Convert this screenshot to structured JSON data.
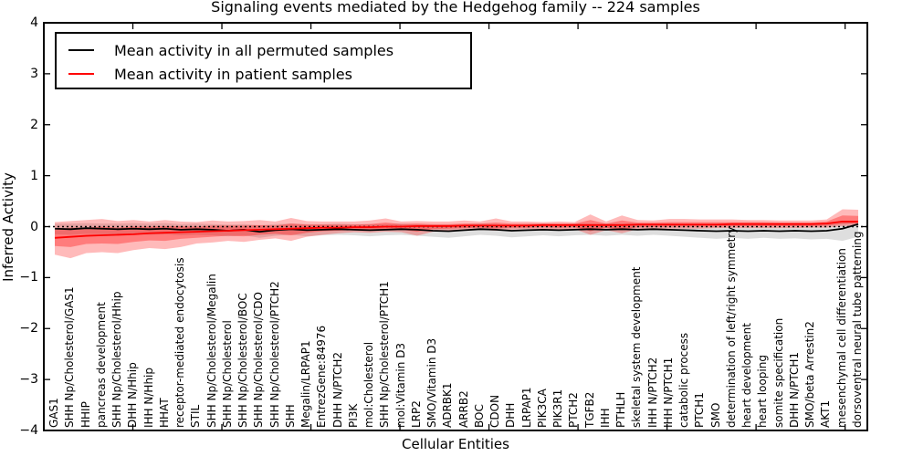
{
  "title": "Signaling events mediated by the Hedgehog family -- 224 samples",
  "axes": {
    "xlabel": "Cellular Entities",
    "ylabel": "Inferred Activity"
  },
  "legend": {
    "items": [
      {
        "label": "Mean activity in all permuted samples",
        "color": "#000000"
      },
      {
        "label": "Mean activity in patient samples",
        "color": "#ff0000"
      }
    ]
  },
  "colors": {
    "patient_line": "#ff0000",
    "permuted_line": "#000000",
    "patient_band_outer": "rgba(255,0,0,0.27)",
    "patient_band_inner": "rgba(255,0,0,0.33)",
    "permuted_band": "rgba(0,0,0,0.13)",
    "frame": "#000000",
    "background": "#ffffff"
  },
  "chart_data": {
    "type": "line",
    "title": "Signaling events mediated by the Hedgehog family -- 224 samples",
    "xlabel": "Cellular Entities",
    "ylabel": "Inferred Activity",
    "ylim": [
      -4,
      4
    ],
    "ytick_values": [
      4,
      3,
      2,
      1,
      0,
      -1,
      -2,
      -3,
      -4
    ],
    "ytick_labels": [
      "4",
      "3",
      "2",
      "1",
      "0",
      "−1",
      "−2",
      "−3",
      "−4"
    ],
    "grid": false,
    "legend_position": "upper left",
    "zero_reference_line": 0,
    "categories": [
      "GAS1",
      "SHH Np/Cholesterol/GAS1",
      "HHIP",
      "pancreas development",
      "SHH Np/Cholesterol/Hhip",
      "DHH N/Hhip",
      "IHH N/Hhip",
      "HHAT",
      "receptor-mediated endocytosis",
      "STIL",
      "SHH Np/Cholesterol/Megalin",
      "SHH Np/Cholesterol",
      "SHH Np/Cholesterol/BOC",
      "SHH Np/Cholesterol/CDO",
      "SHH Np/Cholesterol/PTCH2",
      "SHH",
      "Megalin/LRPAP1",
      "EntrezGene:84976",
      "DHH N/PTCH2",
      "PI3K",
      "mol:Cholesterol",
      "SHH Np/Cholesterol/PTCH1",
      "mol:Vitamin D3",
      "LRP2",
      "SMO/Vitamin D3",
      "ADRBK1",
      "ARRB2",
      "BOC",
      "CDON",
      "DHH",
      "LRPAP1",
      "PIK3CA",
      "PIK3R1",
      "PTCH2",
      "TGFB2",
      "IHH",
      "PTHLH",
      "skeletal system development",
      "IHH N/PTCH2",
      "IHH N/PTCH1",
      "catabolic process",
      "PTCH1",
      "SMO",
      "determination of left/right symmetry",
      "heart development",
      "heart looping",
      "somite specification",
      "DHH N/PTCH1",
      "SMO/beta Arrestin2",
      "AKT1",
      "mesenchymal cell differentiation",
      "dorsoventral neural tube patterning"
    ],
    "series": [
      {
        "name": "Mean activity in all permuted samples",
        "color": "#000000",
        "values": [
          -0.04,
          -0.05,
          -0.03,
          -0.04,
          -0.05,
          -0.04,
          -0.05,
          -0.04,
          -0.06,
          -0.05,
          -0.06,
          -0.08,
          -0.06,
          -0.1,
          -0.07,
          -0.05,
          -0.07,
          -0.06,
          -0.05,
          -0.06,
          -0.07,
          -0.06,
          -0.05,
          -0.06,
          -0.08,
          -0.09,
          -0.07,
          -0.05,
          -0.06,
          -0.08,
          -0.07,
          -0.06,
          -0.07,
          -0.06,
          -0.05,
          -0.06,
          -0.05,
          -0.06,
          -0.05,
          -0.06,
          -0.07,
          -0.08,
          -0.09,
          -0.08,
          -0.09,
          -0.08,
          -0.09,
          -0.08,
          -0.09,
          -0.08,
          -0.04,
          0.05
        ]
      },
      {
        "name": "Mean activity in patient samples",
        "color": "#ff0000",
        "values": [
          -0.22,
          -0.2,
          -0.18,
          -0.17,
          -0.16,
          -0.15,
          -0.13,
          -0.12,
          -0.11,
          -0.1,
          -0.09,
          -0.08,
          -0.07,
          -0.06,
          -0.05,
          -0.04,
          -0.03,
          -0.02,
          -0.02,
          -0.01,
          -0.01,
          0.0,
          0.0,
          0.01,
          0.01,
          0.01,
          0.02,
          0.02,
          0.02,
          0.02,
          0.02,
          0.03,
          0.03,
          0.03,
          0.03,
          0.03,
          0.03,
          0.04,
          0.04,
          0.04,
          0.04,
          0.04,
          0.04,
          0.05,
          0.05,
          0.05,
          0.05,
          0.05,
          0.05,
          0.06,
          0.1,
          0.1
        ]
      }
    ],
    "bands": [
      {
        "name": "permuted-range",
        "color": "rgba(0,0,0,0.13)",
        "low": [
          -0.15,
          -0.16,
          -0.14,
          -0.15,
          -0.16,
          -0.15,
          -0.16,
          -0.15,
          -0.17,
          -0.16,
          -0.17,
          -0.19,
          -0.17,
          -0.22,
          -0.18,
          -0.16,
          -0.19,
          -0.17,
          -0.16,
          -0.17,
          -0.19,
          -0.17,
          -0.16,
          -0.18,
          -0.2,
          -0.22,
          -0.19,
          -0.16,
          -0.18,
          -0.21,
          -0.19,
          -0.17,
          -0.19,
          -0.17,
          -0.16,
          -0.18,
          -0.16,
          -0.18,
          -0.16,
          -0.18,
          -0.2,
          -0.22,
          -0.24,
          -0.22,
          -0.24,
          -0.22,
          -0.24,
          -0.23,
          -0.25,
          -0.24,
          -0.28,
          -0.2
        ],
        "high": [
          0.06,
          0.06,
          0.07,
          0.06,
          0.06,
          0.07,
          0.06,
          0.07,
          0.05,
          0.06,
          0.05,
          0.04,
          0.05,
          0.03,
          0.05,
          0.06,
          0.05,
          0.05,
          0.06,
          0.05,
          0.05,
          0.05,
          0.06,
          0.05,
          0.04,
          0.04,
          0.05,
          0.06,
          0.05,
          0.04,
          0.05,
          0.06,
          0.05,
          0.06,
          0.06,
          0.06,
          0.06,
          0.06,
          0.06,
          0.06,
          0.05,
          0.05,
          0.04,
          0.05,
          0.04,
          0.05,
          0.04,
          0.05,
          0.04,
          0.05,
          0.08,
          0.12
        ]
      },
      {
        "name": "patient-range-outer",
        "color": "rgba(255,0,0,0.27)",
        "low": [
          -0.55,
          -0.62,
          -0.52,
          -0.5,
          -0.52,
          -0.46,
          -0.42,
          -0.44,
          -0.4,
          -0.33,
          -0.31,
          -0.28,
          -0.3,
          -0.26,
          -0.23,
          -0.28,
          -0.2,
          -0.16,
          -0.13,
          -0.11,
          -0.12,
          -0.1,
          -0.11,
          -0.18,
          -0.1,
          -0.08,
          -0.07,
          -0.06,
          -0.08,
          -0.06,
          -0.05,
          -0.05,
          -0.06,
          -0.05,
          -0.16,
          -0.07,
          -0.13,
          -0.05,
          -0.05,
          -0.04,
          -0.04,
          -0.04,
          -0.03,
          -0.03,
          -0.03,
          -0.03,
          -0.03,
          -0.03,
          -0.02,
          -0.02,
          0.01,
          0.02
        ],
        "high": [
          0.09,
          0.11,
          0.13,
          0.15,
          0.11,
          0.13,
          0.1,
          0.13,
          0.1,
          0.09,
          0.12,
          0.1,
          0.11,
          0.13,
          0.1,
          0.17,
          0.11,
          0.1,
          0.1,
          0.1,
          0.12,
          0.16,
          0.1,
          0.11,
          0.1,
          0.1,
          0.12,
          0.1,
          0.16,
          0.1,
          0.1,
          0.09,
          0.1,
          0.09,
          0.24,
          0.1,
          0.22,
          0.13,
          0.12,
          0.15,
          0.15,
          0.14,
          0.14,
          0.14,
          0.13,
          0.13,
          0.12,
          0.12,
          0.12,
          0.14,
          0.34,
          0.33
        ]
      },
      {
        "name": "patient-range-inner",
        "color": "rgba(255,0,0,0.33)",
        "low": [
          -0.38,
          -0.4,
          -0.34,
          -0.33,
          -0.34,
          -0.3,
          -0.27,
          -0.28,
          -0.24,
          -0.22,
          -0.2,
          -0.18,
          -0.19,
          -0.16,
          -0.14,
          -0.17,
          -0.12,
          -0.09,
          -0.08,
          -0.06,
          -0.07,
          -0.05,
          -0.06,
          -0.1,
          -0.05,
          -0.04,
          -0.03,
          -0.02,
          -0.04,
          -0.02,
          -0.02,
          -0.01,
          -0.02,
          -0.01,
          -0.09,
          -0.02,
          -0.07,
          -0.01,
          -0.01,
          0.0,
          0.0,
          0.0,
          0.0,
          0.01,
          0.01,
          0.01,
          0.01,
          0.01,
          0.01,
          0.02,
          0.05,
          0.06
        ],
        "high": [
          -0.06,
          -0.02,
          -0.02,
          0.0,
          -0.02,
          0.0,
          0.0,
          0.01,
          0.01,
          0.0,
          0.02,
          0.02,
          0.02,
          0.03,
          0.02,
          0.06,
          0.04,
          0.04,
          0.04,
          0.04,
          0.05,
          0.08,
          0.05,
          0.06,
          0.05,
          0.05,
          0.06,
          0.06,
          0.08,
          0.06,
          0.06,
          0.06,
          0.06,
          0.06,
          0.13,
          0.06,
          0.12,
          0.08,
          0.08,
          0.09,
          0.09,
          0.09,
          0.09,
          0.09,
          0.09,
          0.09,
          0.08,
          0.08,
          0.08,
          0.1,
          0.22,
          0.21
        ]
      }
    ]
  }
}
